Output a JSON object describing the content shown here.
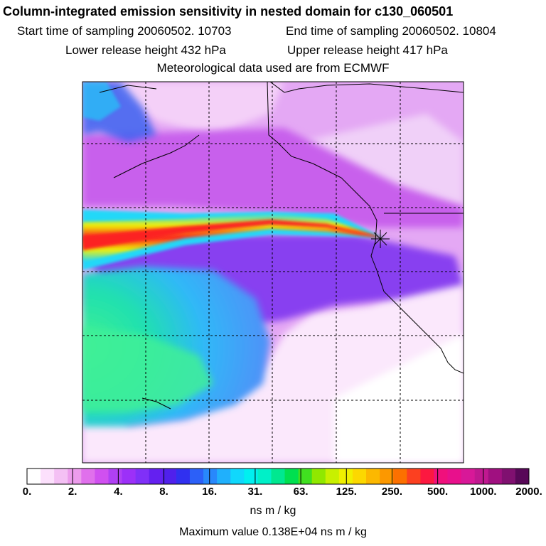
{
  "header": {
    "title": "Column-integrated emission sensitivity in nested domain for c130_060501",
    "start_time": "Start time of sampling 20060502. 10703",
    "end_time": "End time of sampling 20060502. 10804",
    "lower_release": "Lower release height  432 hPa",
    "upper_release": "Upper release height  417 hPa",
    "met_data": "Meteorological data used are from ECMWF"
  },
  "colorbar": {
    "tick_labels": [
      "0.",
      "2.",
      "4.",
      "8.",
      "16.",
      "31.",
      "63.",
      "125.",
      "250.",
      "500.",
      "1000.",
      "2000."
    ],
    "colors": [
      "#ffffff",
      "#fce0fc",
      "#f4c0f4",
      "#ec9cec",
      "#e070ec",
      "#d050f0",
      "#b040f4",
      "#9c30f8",
      "#8030f8",
      "#6420f0",
      "#5020ec",
      "#3030f0",
      "#2c60f8",
      "#2888fc",
      "#20b0fc",
      "#10d8fc",
      "#00f0f0",
      "#00f0c8",
      "#00e890",
      "#00e050",
      "#40e020",
      "#90e800",
      "#c8f000",
      "#f0f000",
      "#fcd800",
      "#fcb800",
      "#fc9800",
      "#fc7000",
      "#fc4020",
      "#fc1840",
      "#f0107c",
      "#e8108c",
      "#d81898",
      "#c01890",
      "#a01080",
      "#801070",
      "#580858"
    ],
    "units": "ns m / kg"
  },
  "max_value": "Maximum value  0.138E+04 ns m / kg",
  "map": {
    "land_color": "#c890f0",
    "ocean_low_color": "#c860f0",
    "plume_color": "#fc2020",
    "receptor_icon": "star-marker-icon"
  }
}
